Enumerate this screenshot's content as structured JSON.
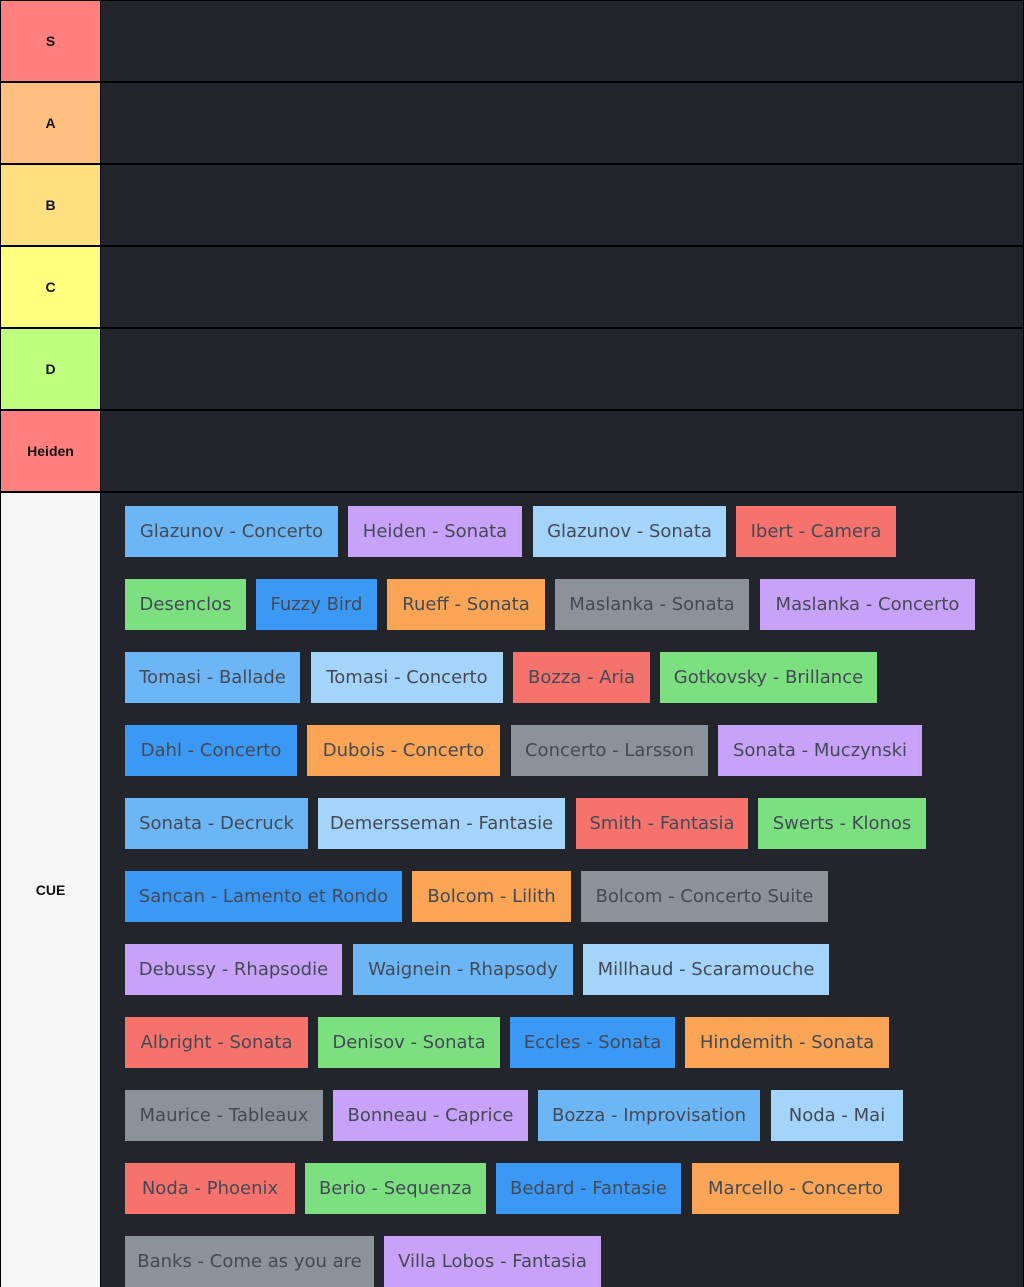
{
  "colors": {
    "tier_S": "#ff7f7f",
    "tier_A": "#ffbf7f",
    "tier_B": "#ffdf7f",
    "tier_C": "#ffff7f",
    "tier_D": "#bfff7f",
    "tier_Heiden": "#ff7f7f",
    "tier_CUE": "#f5f5f5",
    "panel_bg": "#22252c",
    "border": "#000000",
    "card_blue": "#6cb6f5",
    "card_lightblue": "#a4d4fa",
    "card_purple": "#c8a2f8",
    "card_red": "#f6736d",
    "card_green": "#7ce081",
    "card_brightblue": "#3b99f5",
    "card_orange": "#f9a555",
    "card_gray": "#8b9299"
  },
  "tiers": [
    {
      "label": "S"
    },
    {
      "label": "A"
    },
    {
      "label": "B"
    },
    {
      "label": "C"
    },
    {
      "label": "D"
    },
    {
      "label": "Heiden"
    },
    {
      "label": "CUE"
    }
  ],
  "cue_items": [
    {
      "text": "Glazunov - Concerto",
      "color": "#6cb6f5"
    },
    {
      "text": "Heiden - Sonata",
      "color": "#c8a2f8"
    },
    {
      "text": "Glazunov - Sonata",
      "color": "#a4d4fa"
    },
    {
      "text": "Ibert - Camera",
      "color": "#f6736d"
    },
    {
      "text": "Desenclos",
      "color": "#7ce081"
    },
    {
      "text": "Fuzzy Bird",
      "color": "#3b99f5"
    },
    {
      "text": "Rueff - Sonata",
      "color": "#f9a555"
    },
    {
      "text": "Maslanka - Sonata",
      "color": "#8b9299"
    },
    {
      "text": "Maslanka - Concerto",
      "color": "#c8a2f8"
    },
    {
      "text": "Tomasi - Ballade",
      "color": "#6cb6f5"
    },
    {
      "text": "Tomasi - Concerto",
      "color": "#a4d4fa"
    },
    {
      "text": "Bozza - Aria",
      "color": "#f6736d"
    },
    {
      "text": "Gotkovsky - Brillance",
      "color": "#7ce081"
    },
    {
      "text": "Dahl - Concerto",
      "color": "#3b99f5"
    },
    {
      "text": "Dubois - Concerto",
      "color": "#f9a555"
    },
    {
      "text": "Concerto - Larsson",
      "color": "#8b9299"
    },
    {
      "text": "Sonata - Muczynski",
      "color": "#c8a2f8"
    },
    {
      "text": "Sonata - Decruck",
      "color": "#6cb6f5"
    },
    {
      "text": "Demersseman - Fantasie",
      "color": "#a4d4fa"
    },
    {
      "text": "Smith - Fantasia",
      "color": "#f6736d"
    },
    {
      "text": "Swerts - Klonos",
      "color": "#7ce081"
    },
    {
      "text": "Sancan - Lamento et Rondo",
      "color": "#3b99f5"
    },
    {
      "text": "Bolcom - Lilith",
      "color": "#f9a555"
    },
    {
      "text": "Bolcom - Concerto Suite",
      "color": "#8b9299"
    },
    {
      "text": "Debussy - Rhapsodie",
      "color": "#c8a2f8"
    },
    {
      "text": "Waignein - Rhapsody",
      "color": "#6cb6f5"
    },
    {
      "text": "Millhaud - Scaramouche",
      "color": "#a4d4fa"
    },
    {
      "text": "Albright - Sonata",
      "color": "#f6736d"
    },
    {
      "text": "Denisov - Sonata",
      "color": "#7ce081"
    },
    {
      "text": "Eccles - Sonata",
      "color": "#3b99f5"
    },
    {
      "text": "Hindemith - Sonata",
      "color": "#f9a555"
    },
    {
      "text": "Maurice - Tableaux",
      "color": "#8b9299"
    },
    {
      "text": "Bonneau - Caprice",
      "color": "#c8a2f8"
    },
    {
      "text": "Bozza - Improvisation",
      "color": "#6cb6f5"
    },
    {
      "text": "Noda - Mai",
      "color": "#a4d4fa"
    },
    {
      "text": "Noda - Phoenix",
      "color": "#f6736d"
    },
    {
      "text": "Berio - Sequenza",
      "color": "#7ce081"
    },
    {
      "text": "Bedard - Fantasie",
      "color": "#3b99f5"
    },
    {
      "text": "Marcello - Concerto",
      "color": "#f9a555"
    },
    {
      "text": "Banks - Come as you are",
      "color": "#8b9299"
    },
    {
      "text": "Villa Lobos - Fantasia",
      "color": "#c8a2f8"
    }
  ]
}
